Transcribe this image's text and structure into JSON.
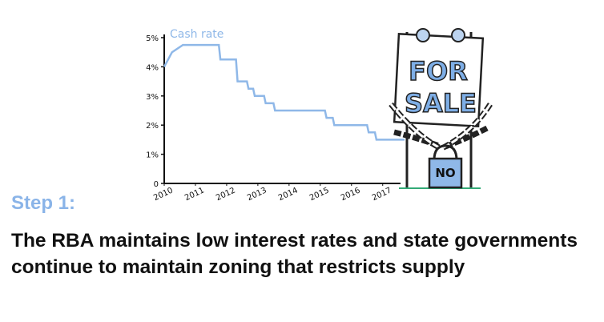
{
  "chart_data": {
    "type": "line",
    "annotation": "Cash rate",
    "x": [
      2010,
      2010.25,
      2010.6,
      2011.75,
      2011.8,
      2012.05,
      2012.3,
      2012.35,
      2012.65,
      2012.7,
      2012.85,
      2012.9,
      2013.2,
      2013.25,
      2013.5,
      2013.55,
      2015.15,
      2015.2,
      2015.4,
      2015.45,
      2016.5,
      2016.55,
      2016.75,
      2016.8,
      2017.7
    ],
    "series": [
      {
        "name": "Cash rate",
        "color": "#8fb8e8",
        "values": [
          4.0,
          4.5,
          4.75,
          4.75,
          4.25,
          4.25,
          4.25,
          3.5,
          3.5,
          3.25,
          3.25,
          3.0,
          3.0,
          2.75,
          2.75,
          2.5,
          2.5,
          2.25,
          2.25,
          2.0,
          2.0,
          1.75,
          1.75,
          1.5,
          1.5
        ]
      }
    ],
    "xlim": [
      2010,
      2017.7
    ],
    "xticks": [
      2010,
      2011,
      2012,
      2013,
      2014,
      2015,
      2016,
      2017
    ],
    "ylim": [
      0,
      5
    ],
    "yticks": [
      0,
      {
        "value": 1,
        "label": "1%"
      },
      {
        "value": 2,
        "label": "2%"
      },
      {
        "value": 3,
        "label": "3%"
      },
      {
        "value": 4,
        "label": "4%"
      },
      {
        "value": 5,
        "label": "5%"
      }
    ]
  },
  "sign": {
    "line1": "FOR",
    "line2": "SALE",
    "lock": "NO"
  },
  "heading": "Step 1:",
  "caption": "The RBA maintains low interest rates and state governments continue to maintain zoning that restricts supply"
}
